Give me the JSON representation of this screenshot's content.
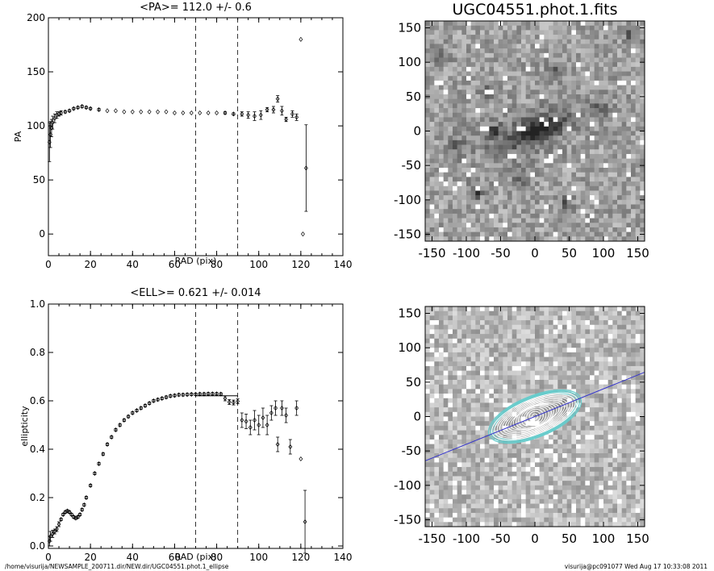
{
  "footer": {
    "left": "/home/visurija/NEWSAMPLE_200711.dir/NEW.dir/UGC04551.phot.1_ellipse",
    "right": "visurija@pc091077  Wed Aug 17 10:33:08 2011"
  },
  "chart_data": [
    {
      "type": "scatter",
      "title": "<PA>= 112.0 +/-   0.6",
      "xlabel": "RAD (pix)",
      "ylabel": "PA",
      "xlim": [
        0,
        140
      ],
      "ylim": [
        -20,
        200
      ],
      "xticks": [
        "0",
        "20",
        "40",
        "60",
        "80",
        "100",
        "120",
        "140"
      ],
      "yticks": [
        "0",
        "50",
        "100",
        "150",
        "200"
      ],
      "vlines": [
        70,
        90
      ],
      "marker": "diamond",
      "points": [
        {
          "x": 0.5,
          "y": 85,
          "err": 18
        },
        {
          "x": 1.0,
          "y": 92,
          "err": 12
        },
        {
          "x": 1.5,
          "y": 98,
          "err": 8
        },
        {
          "x": 2.0,
          "y": 103,
          "err": 6
        },
        {
          "x": 3.0,
          "y": 107,
          "err": 4
        },
        {
          "x": 4.0,
          "y": 110,
          "err": 3
        },
        {
          "x": 5.0,
          "y": 111,
          "err": 2
        },
        {
          "x": 6.0,
          "y": 112,
          "err": 2
        },
        {
          "x": 8.0,
          "y": 113,
          "err": 1
        },
        {
          "x": 10.0,
          "y": 114,
          "err": 1
        },
        {
          "x": 12.0,
          "y": 116,
          "err": 1
        },
        {
          "x": 14.0,
          "y": 117,
          "err": 1
        },
        {
          "x": 16.0,
          "y": 118,
          "err": 1
        },
        {
          "x": 18.0,
          "y": 117,
          "err": 1
        },
        {
          "x": 20.0,
          "y": 116,
          "err": 1
        },
        {
          "x": 24.0,
          "y": 115,
          "err": 1
        },
        {
          "x": 28.0,
          "y": 114,
          "err": 0
        },
        {
          "x": 32.0,
          "y": 114,
          "err": 0
        },
        {
          "x": 36.0,
          "y": 113,
          "err": 0
        },
        {
          "x": 40.0,
          "y": 113,
          "err": 0
        },
        {
          "x": 44.0,
          "y": 113,
          "err": 0
        },
        {
          "x": 48.0,
          "y": 113,
          "err": 0
        },
        {
          "x": 52.0,
          "y": 113,
          "err": 0
        },
        {
          "x": 56.0,
          "y": 113,
          "err": 0
        },
        {
          "x": 60.0,
          "y": 112,
          "err": 0
        },
        {
          "x": 64.0,
          "y": 112,
          "err": 0
        },
        {
          "x": 68.0,
          "y": 112,
          "err": 0
        },
        {
          "x": 72.0,
          "y": 112,
          "err": 0
        },
        {
          "x": 76.0,
          "y": 112,
          "err": 0
        },
        {
          "x": 80.0,
          "y": 112,
          "err": 0
        },
        {
          "x": 84.0,
          "y": 112,
          "err": 1
        },
        {
          "x": 88.0,
          "y": 111,
          "err": 1
        },
        {
          "x": 92.0,
          "y": 111,
          "err": 2
        },
        {
          "x": 95.0,
          "y": 110,
          "err": 3
        },
        {
          "x": 98.0,
          "y": 109,
          "err": 4
        },
        {
          "x": 101.0,
          "y": 110,
          "err": 4
        },
        {
          "x": 104.0,
          "y": 115,
          "err": 2
        },
        {
          "x": 107.0,
          "y": 115,
          "err": 3
        },
        {
          "x": 109.0,
          "y": 125,
          "err": 3
        },
        {
          "x": 111.0,
          "y": 114,
          "err": 4
        },
        {
          "x": 113.0,
          "y": 106,
          "err": 2
        },
        {
          "x": 116.0,
          "y": 111,
          "err": 3
        },
        {
          "x": 118.0,
          "y": 108,
          "err": 3
        },
        {
          "x": 120.0,
          "y": 180,
          "err": 0
        },
        {
          "x": 121.0,
          "y": 0,
          "err": 0
        },
        {
          "x": 122.5,
          "y": 61,
          "err": 40
        }
      ]
    },
    {
      "type": "scatter",
      "title": "<ELL>= 0.621 +/-  0.014",
      "xlabel": "RAD (pix)",
      "ylabel": "ellipticity",
      "xlim": [
        0,
        140
      ],
      "ylim": [
        -0.01,
        1.0
      ],
      "xticks": [
        "0",
        "20",
        "40",
        "60",
        "80",
        "100",
        "120",
        "140"
      ],
      "yticks": [
        "0.0",
        "0.2",
        "0.4",
        "0.6",
        "0.8",
        "1.0"
      ],
      "vlines": [
        70,
        90
      ],
      "marker": "diamond",
      "mean_line": {
        "x_from": 70,
        "x_to": 90,
        "y": 0.621
      },
      "points": [
        {
          "x": 0.5,
          "y": 0.02,
          "err": 0.02
        },
        {
          "x": 1.0,
          "y": 0.04,
          "err": 0.02
        },
        {
          "x": 2.0,
          "y": 0.05,
          "err": 0.015
        },
        {
          "x": 3.0,
          "y": 0.06,
          "err": 0.01
        },
        {
          "x": 4.0,
          "y": 0.07,
          "err": 0.01
        },
        {
          "x": 5.0,
          "y": 0.09,
          "err": 0.01
        },
        {
          "x": 6.0,
          "y": 0.11,
          "err": 0.005
        },
        {
          "x": 7.0,
          "y": 0.13,
          "err": 0.005
        },
        {
          "x": 8.0,
          "y": 0.14,
          "err": 0.005
        },
        {
          "x": 9.0,
          "y": 0.145,
          "err": 0.005
        },
        {
          "x": 10.0,
          "y": 0.14,
          "err": 0.005
        },
        {
          "x": 11.0,
          "y": 0.13,
          "err": 0.005
        },
        {
          "x": 12.0,
          "y": 0.12,
          "err": 0.005
        },
        {
          "x": 13.0,
          "y": 0.115,
          "err": 0.005
        },
        {
          "x": 14.0,
          "y": 0.12,
          "err": 0.005
        },
        {
          "x": 15.0,
          "y": 0.13,
          "err": 0.005
        },
        {
          "x": 16.0,
          "y": 0.15,
          "err": 0.005
        },
        {
          "x": 17.0,
          "y": 0.17,
          "err": 0.005
        },
        {
          "x": 18.0,
          "y": 0.2,
          "err": 0.005
        },
        {
          "x": 20.0,
          "y": 0.25,
          "err": 0.005
        },
        {
          "x": 22.0,
          "y": 0.3,
          "err": 0.005
        },
        {
          "x": 24.0,
          "y": 0.34,
          "err": 0.005
        },
        {
          "x": 26.0,
          "y": 0.38,
          "err": 0.005
        },
        {
          "x": 28.0,
          "y": 0.42,
          "err": 0.005
        },
        {
          "x": 30.0,
          "y": 0.45,
          "err": 0.005
        },
        {
          "x": 32.0,
          "y": 0.48,
          "err": 0.005
        },
        {
          "x": 34.0,
          "y": 0.5,
          "err": 0.005
        },
        {
          "x": 36.0,
          "y": 0.52,
          "err": 0.005
        },
        {
          "x": 38.0,
          "y": 0.535,
          "err": 0.005
        },
        {
          "x": 40.0,
          "y": 0.55,
          "err": 0.005
        },
        {
          "x": 42.0,
          "y": 0.56,
          "err": 0.005
        },
        {
          "x": 44.0,
          "y": 0.57,
          "err": 0.005
        },
        {
          "x": 46.0,
          "y": 0.58,
          "err": 0.005
        },
        {
          "x": 48.0,
          "y": 0.59,
          "err": 0.005
        },
        {
          "x": 50.0,
          "y": 0.6,
          "err": 0.005
        },
        {
          "x": 52.0,
          "y": 0.605,
          "err": 0.005
        },
        {
          "x": 54.0,
          "y": 0.61,
          "err": 0.005
        },
        {
          "x": 56.0,
          "y": 0.615,
          "err": 0.005
        },
        {
          "x": 58.0,
          "y": 0.62,
          "err": 0.005
        },
        {
          "x": 60.0,
          "y": 0.622,
          "err": 0.005
        },
        {
          "x": 62.0,
          "y": 0.625,
          "err": 0.005
        },
        {
          "x": 64.0,
          "y": 0.625,
          "err": 0.005
        },
        {
          "x": 66.0,
          "y": 0.626,
          "err": 0.005
        },
        {
          "x": 68.0,
          "y": 0.627,
          "err": 0.005
        },
        {
          "x": 70.0,
          "y": 0.627,
          "err": 0.005
        },
        {
          "x": 72.0,
          "y": 0.628,
          "err": 0.005
        },
        {
          "x": 74.0,
          "y": 0.628,
          "err": 0.005
        },
        {
          "x": 76.0,
          "y": 0.629,
          "err": 0.005
        },
        {
          "x": 78.0,
          "y": 0.629,
          "err": 0.005
        },
        {
          "x": 80.0,
          "y": 0.629,
          "err": 0.005
        },
        {
          "x": 82.0,
          "y": 0.628,
          "err": 0.005
        },
        {
          "x": 84.0,
          "y": 0.61,
          "err": 0.01
        },
        {
          "x": 86.0,
          "y": 0.595,
          "err": 0.01
        },
        {
          "x": 88.0,
          "y": 0.593,
          "err": 0.01
        },
        {
          "x": 90.0,
          "y": 0.598,
          "err": 0.01
        },
        {
          "x": 92.0,
          "y": 0.52,
          "err": 0.03
        },
        {
          "x": 94.0,
          "y": 0.515,
          "err": 0.03
        },
        {
          "x": 96.0,
          "y": 0.49,
          "err": 0.03
        },
        {
          "x": 98.0,
          "y": 0.52,
          "err": 0.04
        },
        {
          "x": 100.0,
          "y": 0.5,
          "err": 0.04
        },
        {
          "x": 102.0,
          "y": 0.53,
          "err": 0.04
        },
        {
          "x": 104.0,
          "y": 0.5,
          "err": 0.04
        },
        {
          "x": 106.0,
          "y": 0.55,
          "err": 0.03
        },
        {
          "x": 108.0,
          "y": 0.57,
          "err": 0.03
        },
        {
          "x": 109.0,
          "y": 0.42,
          "err": 0.03
        },
        {
          "x": 111.0,
          "y": 0.57,
          "err": 0.03
        },
        {
          "x": 113.0,
          "y": 0.54,
          "err": 0.03
        },
        {
          "x": 115.0,
          "y": 0.41,
          "err": 0.03
        },
        {
          "x": 118.0,
          "y": 0.57,
          "err": 0.03
        },
        {
          "x": 120.0,
          "y": 0.36,
          "err": 0.0
        },
        {
          "x": 122.0,
          "y": 0.1,
          "err": 0.13
        }
      ]
    },
    {
      "type": "heatmap",
      "title": "UGC04551.phot.1.fits",
      "xlim": [
        -160,
        160
      ],
      "ylim": [
        -160,
        160
      ],
      "xticks": [
        "-150",
        "-100",
        "-50",
        "0",
        "50",
        "100",
        "150"
      ],
      "yticks": [
        "150",
        "100",
        "50",
        "0",
        "-50",
        "-100",
        "-150"
      ],
      "colormap": "inverted-grayscale",
      "galaxy_pa_deg": 112,
      "galaxy_ellipticity": 0.62
    },
    {
      "type": "heatmap",
      "title": "",
      "xlim": [
        -160,
        160
      ],
      "ylim": [
        -160,
        160
      ],
      "xticks": [
        "-150",
        "-100",
        "-50",
        "0",
        "50",
        "100",
        "150"
      ],
      "yticks": [
        "150",
        "100",
        "50",
        "0",
        "-50",
        "-100",
        "-150"
      ],
      "colormap": "inverted-grayscale",
      "overlay": "isophote ellipses with major-axis line",
      "contour_color": "#66cccc",
      "ellipse_color": "#ffffff",
      "major_axis_color": "#3333cc",
      "galaxy_pa_deg": 112,
      "galaxy_ellipticity": 0.62
    }
  ]
}
